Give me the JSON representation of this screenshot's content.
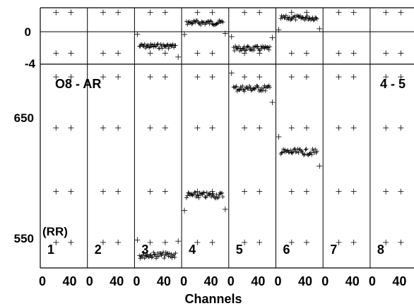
{
  "chart_data": {
    "type": "scatter",
    "title_left": "O8 - AR",
    "title_right": "4 - 5",
    "xlabel": "Channels",
    "panel_tag": "(RR)",
    "panel_labels": [
      "1",
      "2",
      "3",
      "4",
      "5",
      "6",
      "7",
      "8"
    ],
    "x_tick_labels": [
      "0",
      "40"
    ],
    "panel_x_range": [
      0,
      63
    ],
    "top_panel": {
      "y_tick_labels": [
        "0",
        "-4"
      ],
      "ylim": [
        -4.3,
        2.9
      ],
      "zero_line": true,
      "segments": [
        {
          "panel": 3,
          "value": -2.0
        },
        {
          "panel": 4,
          "value": 1.0
        },
        {
          "panel": 5,
          "value": -2.3
        },
        {
          "panel": 6,
          "value": 1.6
        }
      ]
    },
    "bottom_panel": {
      "y_tick_labels": [
        "650",
        "550"
      ],
      "ylim": [
        540,
        700
      ],
      "segments": [
        {
          "panel": 3,
          "value": 550
        },
        {
          "panel": 4,
          "value": 597
        },
        {
          "panel": 5,
          "value": 681
        },
        {
          "panel": 6,
          "value": 631
        }
      ]
    }
  }
}
